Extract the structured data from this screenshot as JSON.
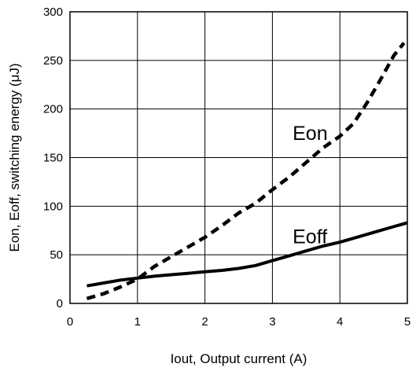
{
  "chart_data": {
    "type": "line",
    "xlabel": "Iout, Output current (A)",
    "ylabel": "Eon, Eoff, switching energy (μJ)",
    "xlim": [
      0,
      5
    ],
    "ylim": [
      0,
      300
    ],
    "x_ticks": [
      "0",
      "1",
      "2",
      "3",
      "4",
      "5"
    ],
    "y_ticks": [
      "0",
      "50",
      "100",
      "150",
      "200",
      "250",
      "300"
    ],
    "grid": true,
    "series": [
      {
        "name": "Eon",
        "style": "dashed",
        "color": "#000000",
        "label_position": [
          3.3,
          168
        ],
        "x": [
          0.25,
          0.5,
          0.75,
          1.0,
          1.25,
          1.5,
          1.75,
          2.0,
          2.25,
          2.5,
          2.75,
          3.0,
          3.25,
          3.5,
          3.75,
          4.0,
          4.2,
          4.4,
          4.6,
          4.8,
          4.95
        ],
        "y": [
          5,
          10,
          17,
          25,
          38,
          48,
          58,
          68,
          80,
          93,
          103,
          117,
          130,
          145,
          160,
          172,
          185,
          206,
          230,
          255,
          268
        ]
      },
      {
        "name": "Eoff",
        "style": "solid",
        "color": "#000000",
        "label_position": [
          3.3,
          62
        ],
        "x": [
          0.25,
          0.5,
          0.75,
          1.0,
          1.25,
          1.5,
          1.75,
          2.0,
          2.25,
          2.5,
          2.75,
          3.0,
          3.25,
          3.5,
          3.75,
          4.0,
          4.25,
          4.5,
          4.75,
          5.0
        ],
        "y": [
          18,
          21,
          24,
          26,
          28,
          29.5,
          31,
          32.5,
          34,
          36,
          39,
          44,
          49,
          54,
          59,
          63,
          68,
          73,
          78,
          83
        ]
      }
    ]
  }
}
